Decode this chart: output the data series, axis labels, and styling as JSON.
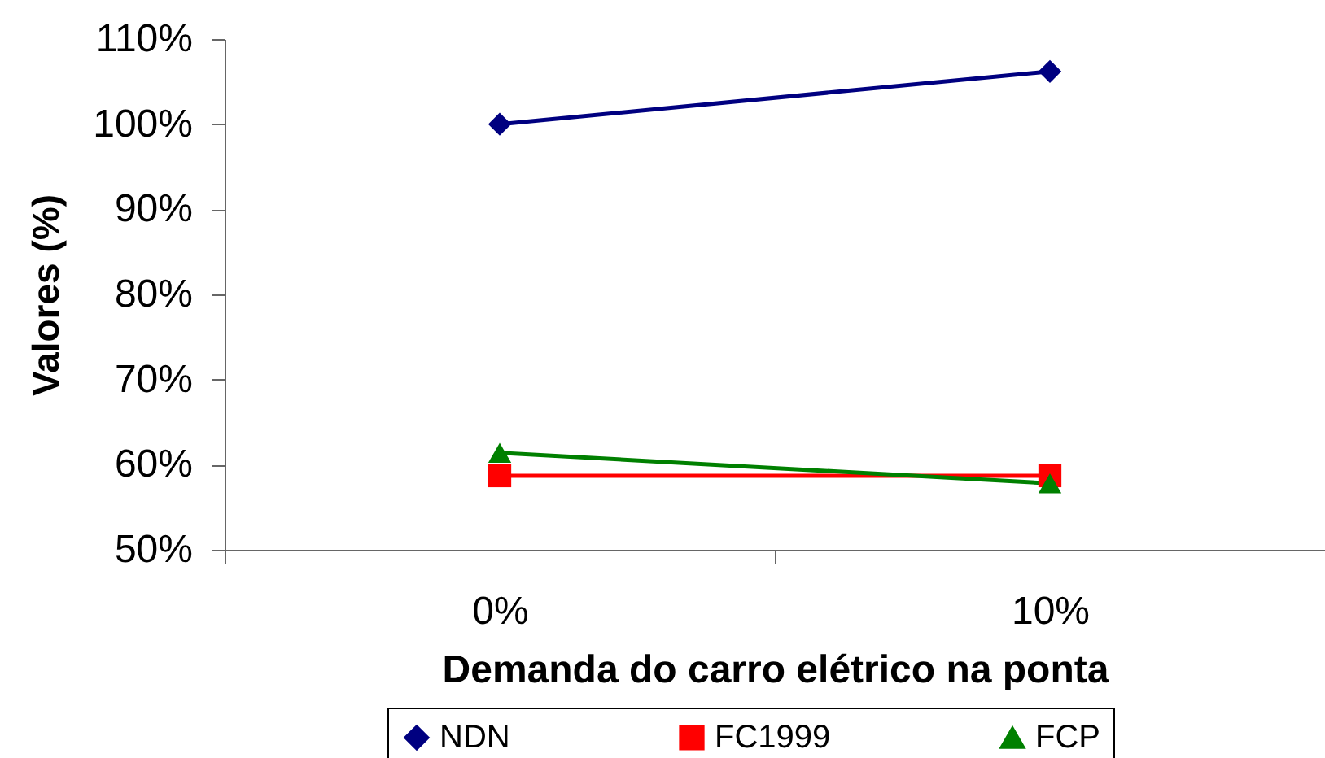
{
  "chart_data": {
    "type": "line",
    "xlabel": "Demanda do carro elétrico na ponta",
    "ylabel": "Valores (%)",
    "categories": [
      "0%",
      "10%"
    ],
    "series": [
      {
        "name": "NDN",
        "color": "#000080",
        "marker": "diamond",
        "values": [
          100.0,
          106.2
        ]
      },
      {
        "name": "FC1999",
        "color": "#ff0000",
        "marker": "square",
        "values": [
          58.7,
          58.7
        ]
      },
      {
        "name": "FCP",
        "color": "#008000",
        "marker": "triangle",
        "values": [
          61.4,
          57.8
        ]
      }
    ],
    "ylim": [
      50,
      110
    ],
    "yticks": [
      {
        "value": 50,
        "label": "50%"
      },
      {
        "value": 60,
        "label": "60%"
      },
      {
        "value": 70,
        "label": "70%"
      },
      {
        "value": 80,
        "label": "80%"
      },
      {
        "value": 90,
        "label": "90%"
      },
      {
        "value": 100,
        "label": "100%"
      },
      {
        "value": 110,
        "label": "110%"
      }
    ],
    "grid": false,
    "legend": "bottom",
    "line_style": "solid"
  }
}
